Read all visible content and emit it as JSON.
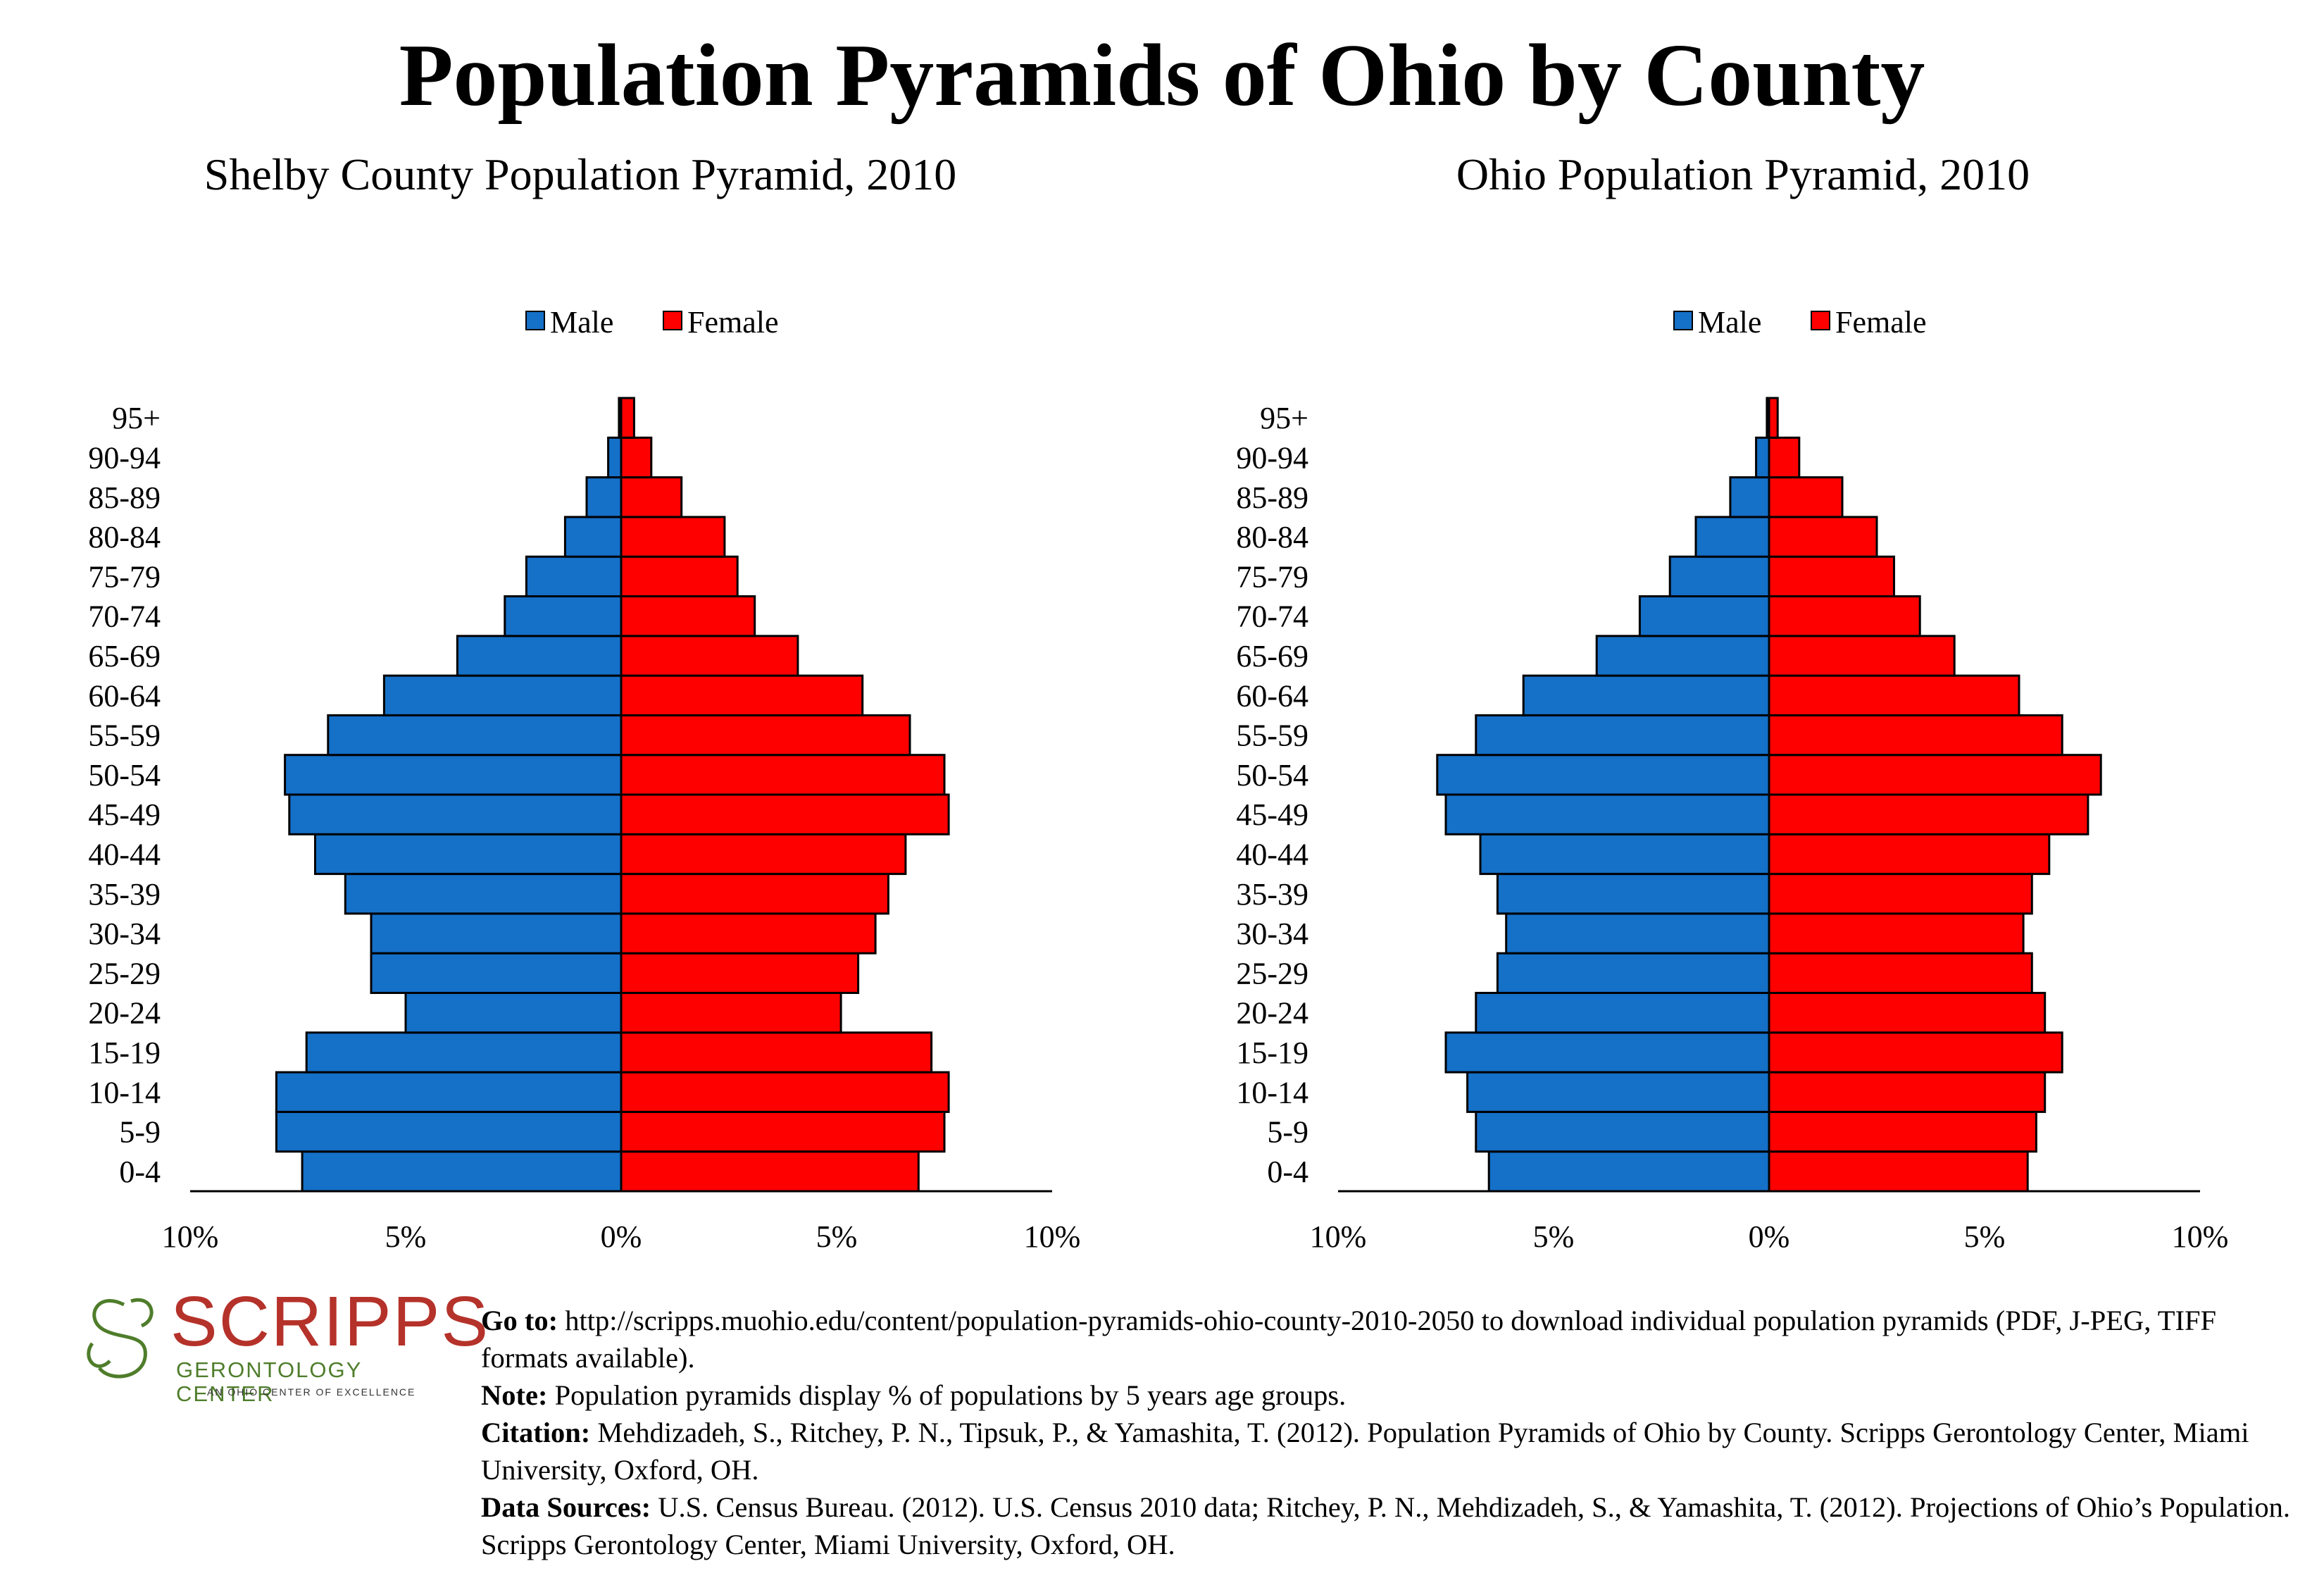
{
  "title": "Population Pyramids of Ohio by County",
  "legend": {
    "male_label": "Male",
    "female_label": "Female",
    "male_color": "#1570c8",
    "female_color": "#ff0000"
  },
  "x_tick_labels": [
    "10%",
    "5%",
    "0%",
    "5%",
    "10%"
  ],
  "chart_data": [
    {
      "type": "bar",
      "orientation": "horizontal-pyramid",
      "title": "Shelby County Population Pyramid, 2010",
      "categories": [
        "0-4",
        "5-9",
        "10-14",
        "15-19",
        "20-24",
        "25-29",
        "30-34",
        "35-39",
        "40-44",
        "45-49",
        "50-54",
        "55-59",
        "60-64",
        "65-69",
        "70-74",
        "75-79",
        "80-84",
        "85-89",
        "90-94",
        "95+"
      ],
      "series": [
        {
          "name": "Male",
          "values": [
            7.4,
            8.0,
            8.0,
            7.3,
            5.0,
            5.8,
            5.8,
            6.4,
            7.1,
            7.7,
            7.8,
            6.8,
            5.5,
            3.8,
            2.7,
            2.2,
            1.3,
            0.8,
            0.3,
            0.05
          ]
        },
        {
          "name": "Female",
          "values": [
            6.9,
            7.5,
            7.6,
            7.2,
            5.1,
            5.5,
            5.9,
            6.2,
            6.6,
            7.6,
            7.5,
            6.7,
            5.6,
            4.1,
            3.1,
            2.7,
            2.4,
            1.4,
            0.7,
            0.3
          ]
        }
      ],
      "xlim": [
        -10,
        10
      ],
      "legend_position": "top-center"
    },
    {
      "type": "bar",
      "orientation": "horizontal-pyramid",
      "title": "Ohio Population Pyramid, 2010",
      "categories": [
        "0-4",
        "5-9",
        "10-14",
        "15-19",
        "20-24",
        "25-29",
        "30-34",
        "35-39",
        "40-44",
        "45-49",
        "50-54",
        "55-59",
        "60-64",
        "65-69",
        "70-74",
        "75-79",
        "80-84",
        "85-89",
        "90-94",
        "95+"
      ],
      "series": [
        {
          "name": "Male",
          "values": [
            6.5,
            6.8,
            7.0,
            7.5,
            6.8,
            6.3,
            6.1,
            6.3,
            6.7,
            7.5,
            7.7,
            6.8,
            5.7,
            4.0,
            3.0,
            2.3,
            1.7,
            0.9,
            0.3,
            0.05
          ]
        },
        {
          "name": "Female",
          "values": [
            6.0,
            6.2,
            6.4,
            6.8,
            6.4,
            6.1,
            5.9,
            6.1,
            6.5,
            7.4,
            7.7,
            6.8,
            5.8,
            4.3,
            3.5,
            2.9,
            2.5,
            1.7,
            0.7,
            0.2
          ]
        }
      ],
      "xlim": [
        -10,
        10
      ],
      "legend_position": "top-center"
    }
  ],
  "logo": {
    "word": "SCRIPPS",
    "sub": "GERONTOLOGY CENTER",
    "tagline": "AN OHIO CENTER OF EXCELLENCE"
  },
  "footer": {
    "goto_label": "Go to:",
    "goto_text": " http://scripps.muohio.edu/content/population-pyramids-ohio-county-2010-2050 to download individual population pyramids (PDF, J-PEG, TIFF formats available).",
    "note_label": "Note:",
    "note_text": " Population pyramids display % of populations by 5 years age groups.",
    "citation_label": "Citation:",
    "citation_text": " Mehdizadeh, S., Ritchey, P. N., Tipsuk, P., & Yamashita, T. (2012). Population Pyramids of Ohio by County. Scripps Gerontology Center, Miami University, Oxford, OH.",
    "sources_label": "Data Sources:",
    "sources_text": " U.S. Census Bureau. (2012). U.S. Census 2010 data; Ritchey, P. N., Mehdizadeh, S., & Yamashita, T. (2012). Projections of Ohio’s Population. Scripps Gerontology Center, Miami University, Oxford, OH."
  }
}
